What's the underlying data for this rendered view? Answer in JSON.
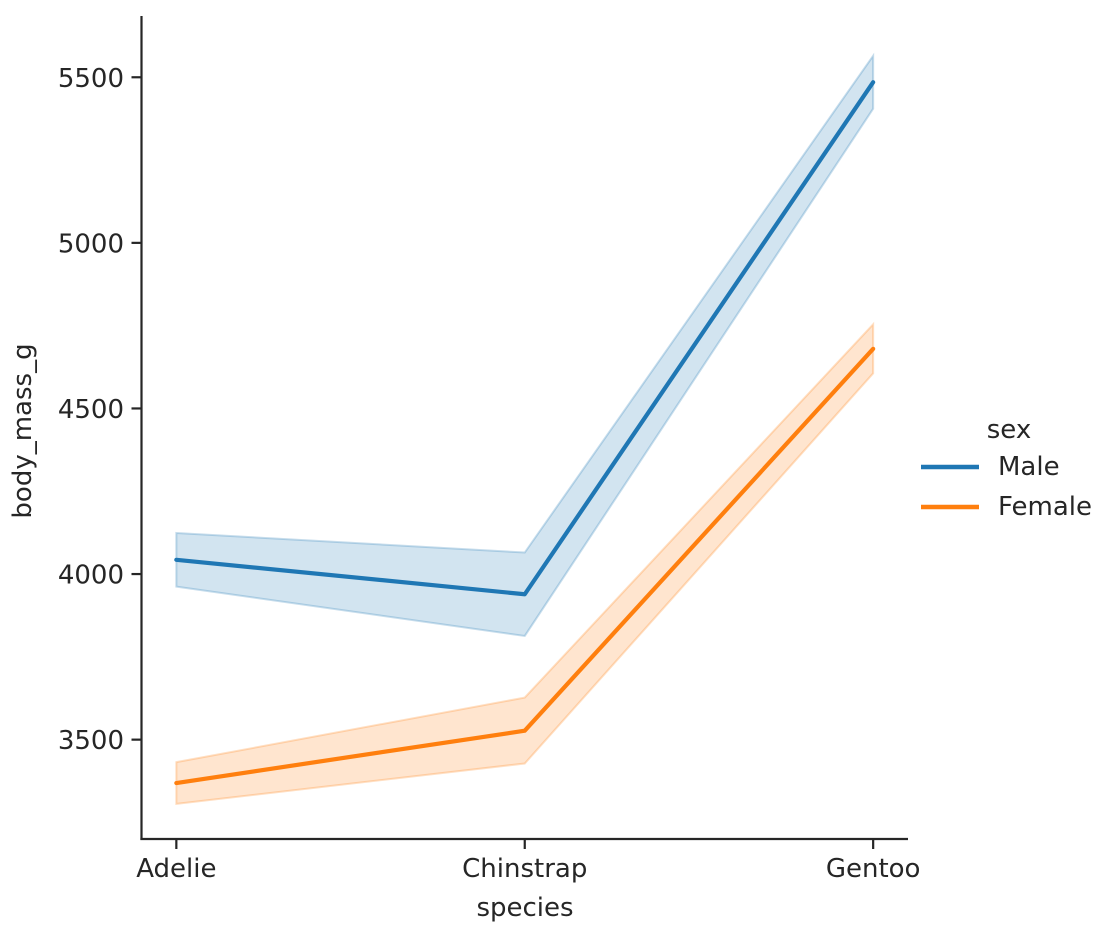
{
  "chart_data": {
    "type": "line",
    "title": "",
    "xlabel": "species",
    "ylabel": "body_mass_g",
    "categories": [
      "Adelie",
      "Chinstrap",
      "Gentoo"
    ],
    "series": [
      {
        "name": "Male",
        "color": "#1f77b4",
        "values": [
          4043,
          3939,
          5485
        ],
        "ci_lower": [
          3962,
          3813,
          5405
        ],
        "ci_upper": [
          4124,
          4065,
          5565
        ]
      },
      {
        "name": "Female",
        "color": "#ff7f0e",
        "values": [
          3369,
          3527,
          4680
        ],
        "ci_lower": [
          3306,
          3428,
          4606
        ],
        "ci_upper": [
          3432,
          3627,
          4754
        ]
      }
    ],
    "y_ticks": [
      3500,
      4000,
      4500,
      5000,
      5500
    ],
    "ylim": [
      3200,
      5685
    ],
    "xlim": [
      -0.1,
      2.1
    ],
    "grid": false,
    "band_alpha": 0.2,
    "band_edge_alpha": 0.25,
    "axis_color": "#262626",
    "legend": {
      "title": "sex",
      "position": "right",
      "entries": [
        "Male",
        "Female"
      ]
    }
  }
}
